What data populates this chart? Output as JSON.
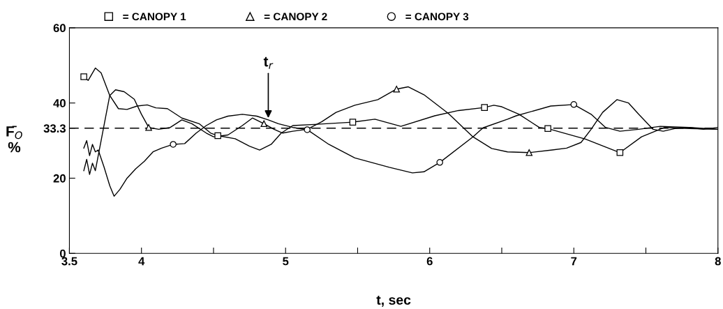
{
  "chart_data": {
    "type": "line",
    "xlabel": "t, sec",
    "ylabel": "F̄$_{O}$\n%",
    "xlim": [
      3.5,
      8
    ],
    "ylim": [
      0,
      60
    ],
    "xticks": [
      3.5,
      4,
      {
        "value": 4.5,
        "label": null
      },
      5,
      {
        "value": 5.5,
        "label": null
      },
      6,
      {
        "value": 6.5,
        "label": null
      },
      7,
      {
        "value": 7.5,
        "label": null
      },
      8
    ],
    "yticks": [
      0,
      20,
      33.3,
      40,
      60
    ],
    "grid": false,
    "legend": "top",
    "line_style": "solid",
    "ref_lines": [
      {
        "axis": "y",
        "value": 33.3,
        "label": null,
        "color": "#000000",
        "line_style": "dashed"
      }
    ],
    "annotations": [
      {
        "text": "t$_{r}$",
        "x": 4.88,
        "y": 35.5
      }
    ],
    "series": [
      {
        "color": "#000000",
        "x": [
          3.6,
          3.63,
          3.68,
          3.72,
          3.78,
          3.84,
          3.9,
          3.97,
          4.04,
          4.1,
          4.18,
          4.28,
          4.4,
          4.48,
          4.53,
          4.65,
          4.75,
          4.82,
          4.9,
          4.97,
          5.05,
          5.2,
          5.466,
          5.62,
          5.8,
          6.035,
          6.2,
          6.38,
          6.445,
          6.5,
          6.62,
          6.76,
          6.82,
          7.08,
          7.32,
          7.47,
          7.63,
          7.8,
          8.0
        ],
        "values": [
          47,
          46,
          49.3,
          48,
          42,
          38.5,
          38.3,
          39.2,
          39.5,
          38.7,
          38.5,
          36,
          34.5,
          32,
          31.3,
          30.5,
          28.5,
          27.5,
          29,
          32,
          34,
          34.3,
          34.9,
          35.7,
          33.8,
          36.6,
          38,
          38.8,
          39.4,
          39,
          37,
          33.5,
          33.2,
          30.4,
          26.8,
          31,
          33.5,
          33.2,
          33
        ]
      },
      {
        "color": "#000000",
        "x": [
          3.6,
          3.62,
          3.64,
          3.66,
          3.68,
          3.7,
          3.72,
          3.75,
          3.78,
          3.82,
          3.88,
          3.95,
          4.0,
          4.05,
          4.12,
          4.2,
          4.28,
          4.35,
          4.45,
          4.5,
          4.6,
          4.7,
          4.77,
          4.85,
          4.92,
          4.98,
          5.05,
          5.15,
          5.25,
          5.35,
          5.48,
          5.64,
          5.77,
          5.85,
          5.96,
          6.13,
          6.3,
          6.43,
          6.54,
          6.69,
          6.85,
          6.95,
          7.05,
          7.12,
          7.2,
          7.3,
          7.38,
          7.45,
          7.55,
          7.62,
          7.7,
          7.8,
          7.9,
          8.0
        ],
        "values": [
          22,
          25,
          21,
          24,
          22,
          26,
          30,
          36,
          42,
          43.5,
          43,
          41,
          37,
          33.5,
          33,
          33.5,
          35.5,
          34.5,
          32,
          31,
          31.5,
          34,
          36,
          34.5,
          33,
          32,
          32.5,
          33,
          35,
          37.5,
          39.4,
          40.9,
          43.7,
          44.3,
          42.2,
          37.2,
          31,
          27.9,
          27,
          26.8,
          27.5,
          28,
          29.5,
          33,
          37.5,
          40.9,
          40,
          37,
          33,
          32.5,
          33.2,
          33.5,
          33,
          33.5
        ]
      },
      {
        "color": "#000000",
        "x": [
          3.6,
          3.62,
          3.64,
          3.66,
          3.68,
          3.7,
          3.74,
          3.78,
          3.81,
          3.85,
          3.9,
          3.96,
          4.02,
          4.08,
          4.14,
          4.22,
          4.3,
          4.38,
          4.45,
          4.52,
          4.6,
          4.7,
          4.8,
          4.88,
          4.95,
          5.05,
          5.15,
          5.3,
          5.48,
          5.72,
          5.88,
          5.96,
          6.07,
          6.3,
          6.37,
          6.54,
          6.6,
          6.84,
          7.0,
          7.12,
          7.22,
          7.32,
          7.45,
          7.6,
          7.8,
          8.0
        ],
        "values": [
          28,
          30,
          26,
          29,
          27,
          27.5,
          23,
          18,
          15.2,
          17,
          20,
          22.5,
          24.5,
          27,
          28,
          29,
          29.2,
          32,
          34,
          35.5,
          36.5,
          37,
          36.5,
          35.5,
          34.5,
          33.5,
          32.9,
          29,
          25.4,
          22.9,
          21.4,
          21.7,
          24.2,
          31,
          33.4,
          35.7,
          36.6,
          39.2,
          39.6,
          37,
          33.5,
          32.5,
          33,
          33.8,
          33.5,
          33
        ]
      },
      {
        "name": "= CANOPY 1",
        "type": "scatter",
        "color": "#000000",
        "marker": "square",
        "x": [
          3.6,
          4.53,
          5.466,
          6.38,
          6.82,
          7.32
        ],
        "values": [
          47,
          31.3,
          34.9,
          38.8,
          33.2,
          26.8
        ]
      },
      {
        "name": "= CANOPY 2",
        "type": "scatter",
        "color": "#000000",
        "marker": "triangle",
        "x": [
          4.05,
          4.85,
          5.77,
          6.69
        ],
        "values": [
          33.5,
          34.5,
          43.7,
          26.8
        ]
      },
      {
        "name": "= CANOPY 3",
        "type": "scatter",
        "color": "#000000",
        "marker": "circle",
        "x": [
          4.22,
          5.15,
          6.07,
          7.0
        ],
        "values": [
          29,
          32.9,
          24.2,
          39.6
        ]
      }
    ]
  }
}
